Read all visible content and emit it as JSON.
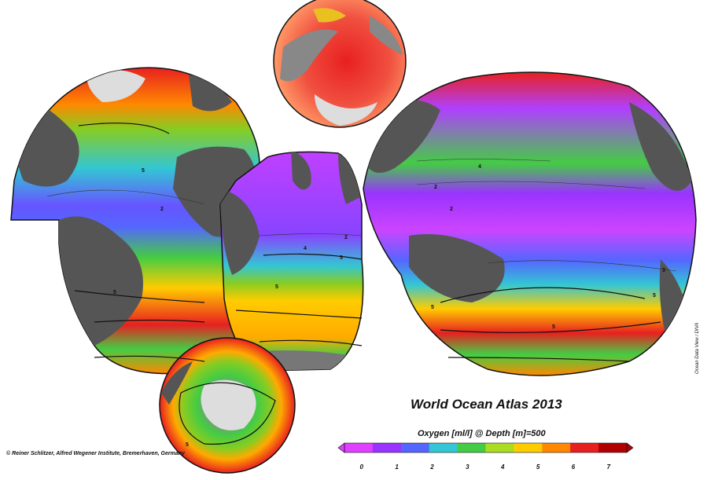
{
  "title": "World Ocean Atlas 2013",
  "subtitle": "Oxygen [ml/l] @ Depth [m]=500",
  "credit": "© Reiner Schlitzer, Alfred Wegener Institute, Bremerhaven, Germany",
  "software_note": "Ocean Data View / DIVA",
  "colorbar": {
    "ticks": [
      "0",
      "1",
      "2",
      "3",
      "4",
      "5",
      "6",
      "7"
    ],
    "min": -0.5,
    "max": 7.5,
    "colors": [
      "#e040ff",
      "#9933ff",
      "#5566ff",
      "#33c6d4",
      "#44cc44",
      "#aadd22",
      "#ffcc00",
      "#ff8800",
      "#e82020",
      "#b00000"
    ]
  },
  "contour_labels": [
    "2",
    "2",
    "2",
    "2",
    "3",
    "4",
    "4",
    "5",
    "5",
    "5",
    "5",
    "5",
    "5",
    "5",
    "5"
  ]
}
